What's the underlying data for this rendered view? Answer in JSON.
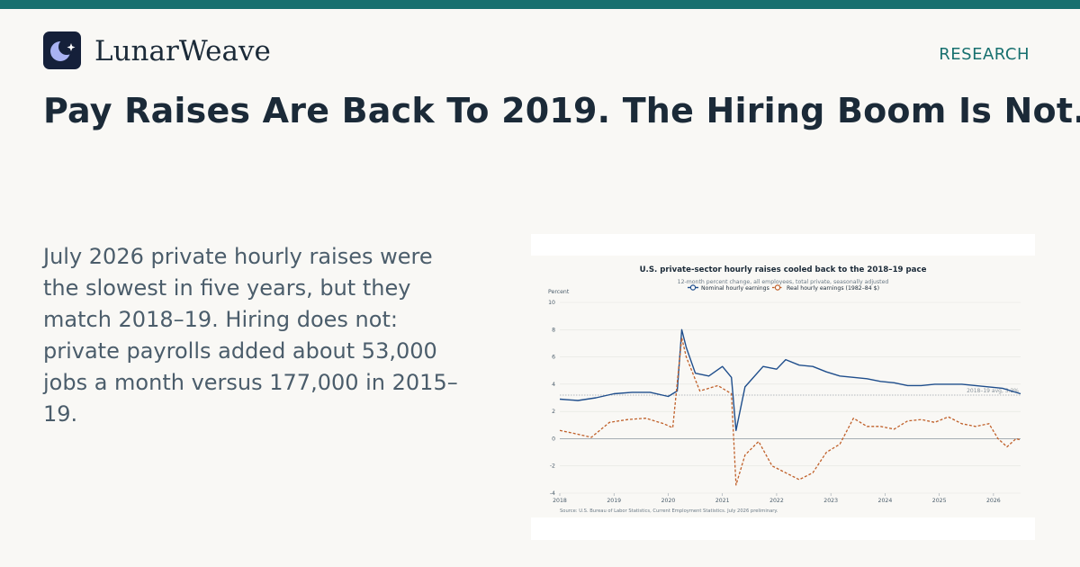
{
  "brand": {
    "name": "LunarWeave",
    "logo_icon": "moon-star-icon"
  },
  "section_label": "RESEARCH",
  "headline": "Pay Raises Are Back To 2019. The Hiring Boom Is Not.",
  "summary": "July 2026 private hourly raises were the slowest in five years, but they match 2018–19. Hiring does not: private payrolls added about 53,000 jobs a month versus 177,000 in 2015–19.",
  "colors": {
    "accent": "#17706f",
    "nominal": "#1f4e8c",
    "real": "#c0602a",
    "ink": "#1b2a38"
  },
  "chart_data": {
    "type": "line",
    "title": "U.S. private-sector hourly raises cooled back to the 2018–19 pace",
    "subtitle": "12-month percent change, all employees, total private, seasonally adjusted",
    "ylabel": "Percent",
    "xlabel": "",
    "ylim": [
      -4,
      10
    ],
    "yticks": [
      -4,
      -2,
      0,
      2,
      4,
      6,
      8,
      10
    ],
    "xlim": [
      "2018-01",
      "2026-07"
    ],
    "xticks": [
      "2018",
      "2019",
      "2020",
      "2021",
      "2022",
      "2023",
      "2024",
      "2025",
      "2026"
    ],
    "legend_position": "top-center",
    "reference_line": {
      "value": 3.2,
      "label": "2018–19 avg, 3.2%"
    },
    "source": "Source: U.S. Bureau of Labor Statistics, Current Employment Statistics. July 2026 preliminary.",
    "series": [
      {
        "name": "Nominal hourly earnings",
        "x": [
          "2018-01",
          "2018-05",
          "2018-09",
          "2019-01",
          "2019-05",
          "2019-09",
          "2020-01",
          "2020-03",
          "2020-04",
          "2020-05",
          "2020-07",
          "2020-10",
          "2021-01",
          "2021-03",
          "2021-04",
          "2021-06",
          "2021-10",
          "2022-01",
          "2022-03",
          "2022-06",
          "2022-09",
          "2022-12",
          "2023-03",
          "2023-06",
          "2023-09",
          "2023-12",
          "2024-03",
          "2024-06",
          "2024-09",
          "2024-12",
          "2025-03",
          "2025-06",
          "2025-09",
          "2025-12",
          "2026-03",
          "2026-07"
        ],
        "values": [
          2.9,
          2.8,
          3.0,
          3.3,
          3.4,
          3.4,
          3.1,
          3.5,
          8.0,
          6.7,
          4.8,
          4.6,
          5.3,
          4.5,
          0.6,
          3.8,
          5.3,
          5.1,
          5.8,
          5.4,
          5.3,
          4.9,
          4.6,
          4.5,
          4.4,
          4.2,
          4.1,
          3.9,
          3.9,
          4.0,
          4.0,
          4.0,
          3.9,
          3.8,
          3.7,
          3.3
        ]
      },
      {
        "name": "Real hourly earnings (1982–84 $)",
        "x": [
          "2018-01",
          "2018-04",
          "2018-08",
          "2018-12",
          "2019-04",
          "2019-08",
          "2019-12",
          "2020-02",
          "2020-04",
          "2020-05",
          "2020-08",
          "2020-12",
          "2021-03",
          "2021-04",
          "2021-06",
          "2021-09",
          "2021-12",
          "2022-03",
          "2022-06",
          "2022-09",
          "2022-12",
          "2023-03",
          "2023-06",
          "2023-09",
          "2023-12",
          "2024-03",
          "2024-06",
          "2024-09",
          "2024-12",
          "2025-03",
          "2025-06",
          "2025-09",
          "2025-12",
          "2026-02",
          "2026-04",
          "2026-06",
          "2026-07"
        ],
        "values": [
          0.6,
          0.4,
          0.1,
          1.2,
          1.4,
          1.5,
          1.1,
          0.8,
          7.4,
          6.0,
          3.5,
          3.9,
          3.3,
          -3.4,
          -1.2,
          -0.2,
          -2.0,
          -2.5,
          -3.0,
          -2.5,
          -1.0,
          -0.4,
          1.5,
          0.9,
          0.9,
          0.7,
          1.3,
          1.4,
          1.2,
          1.6,
          1.1,
          0.9,
          1.1,
          0.0,
          -0.6,
          0.0,
          -0.1
        ]
      }
    ]
  }
}
